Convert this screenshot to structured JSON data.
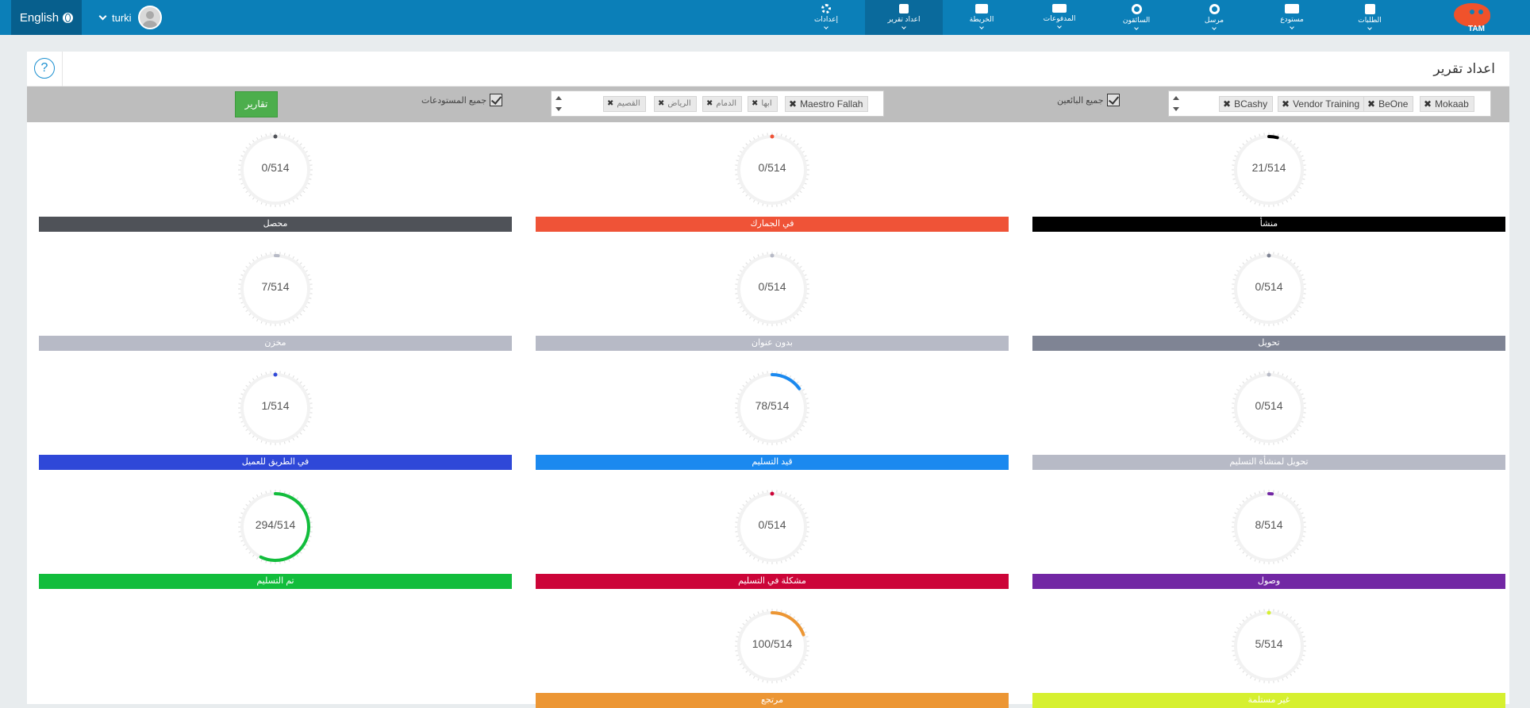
{
  "header": {
    "language": "English",
    "username": "turki",
    "nav": [
      {
        "key": "orders",
        "label": "الطلبات"
      },
      {
        "key": "warehouse",
        "label": "مستودع"
      },
      {
        "key": "sender",
        "label": "مرسل"
      },
      {
        "key": "drivers",
        "label": "السائقون"
      },
      {
        "key": "payments",
        "label": "المدفوعات"
      },
      {
        "key": "map",
        "label": "الخريطة"
      },
      {
        "key": "reports",
        "label": "اعداد تقرير"
      },
      {
        "key": "settings",
        "label": "إعدادات"
      }
    ],
    "logo_text": "TAM"
  },
  "page": {
    "title": "اعداد تقرير",
    "help": "?"
  },
  "filters": {
    "report_button": "تقارير",
    "all_warehouses_label": "جميع المستودعات",
    "all_sellers_label": "جميع البائعين",
    "warehouses": [
      "Maestro Fallah",
      "ابها",
      "الدمام",
      "الرياض",
      "القصيم"
    ],
    "sellers": [
      "Mokaab",
      "BeOne",
      "Vendor Training",
      "BCashy"
    ]
  },
  "statuses": [
    {
      "label": "منشأ",
      "value": "21/514",
      "count": 21,
      "total": 514,
      "color": "#000000"
    },
    {
      "label": "في الجمارك",
      "value": "0/514",
      "count": 0,
      "total": 514,
      "color": "#ef5337"
    },
    {
      "label": "محصل",
      "value": "0/514",
      "count": 0,
      "total": 514,
      "color": "#4f5258"
    },
    {
      "label": "تحويل",
      "value": "0/514",
      "count": 0,
      "total": 514,
      "color": "#7f8494"
    },
    {
      "label": "بدون عنوان",
      "value": "0/514",
      "count": 0,
      "total": 514,
      "color": "#b7bac6"
    },
    {
      "label": "مخزن",
      "value": "7/514",
      "count": 7,
      "total": 514,
      "color": "#b7bac6"
    },
    {
      "label": "تحويل لمنشأة التسليم",
      "value": "0/514",
      "count": 0,
      "total": 514,
      "color": "#b7bac6"
    },
    {
      "label": "قيد التسليم",
      "value": "78/514",
      "count": 78,
      "total": 514,
      "color": "#1b89ef"
    },
    {
      "label": "في الطريق للعميل",
      "value": "1/514",
      "count": 1,
      "total": 514,
      "color": "#2f48d8"
    },
    {
      "label": "وصول",
      "value": "8/514",
      "count": 8,
      "total": 514,
      "color": "#7227a4"
    },
    {
      "label": "مشكلة في التسليم",
      "value": "0/514",
      "count": 0,
      "total": 514,
      "color": "#cc0438"
    },
    {
      "label": "تم التسليم",
      "value": "294/514",
      "count": 294,
      "total": 514,
      "color": "#12bd3c"
    },
    {
      "label": "غير مستلمة",
      "value": "5/514",
      "count": 5,
      "total": 514,
      "color": "#d6f030"
    },
    {
      "label": "مرتجع",
      "value": "100/514",
      "count": 100,
      "total": 514,
      "color": "#ec9634"
    }
  ]
}
